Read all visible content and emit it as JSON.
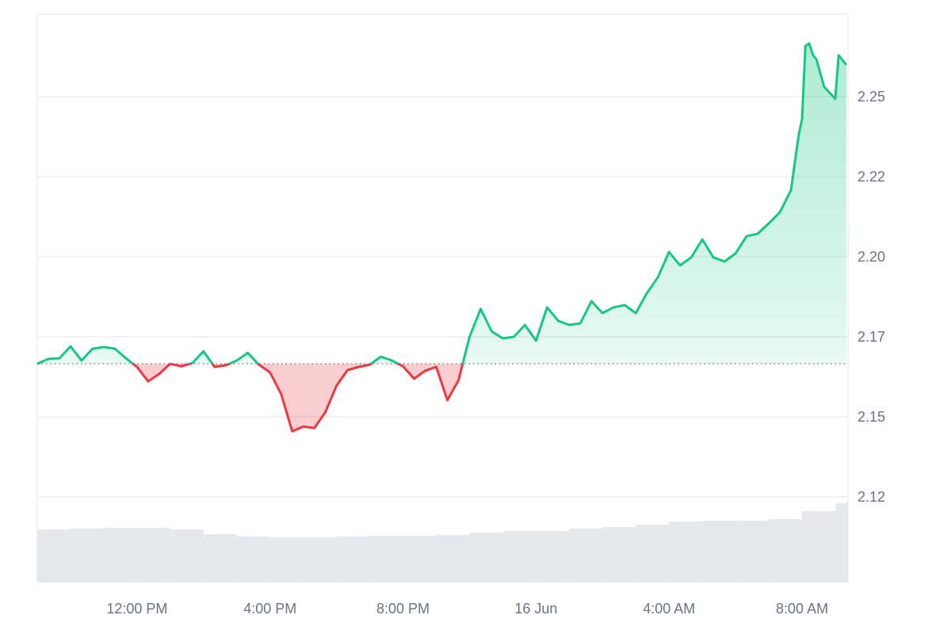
{
  "chart_data": {
    "type": "line",
    "title": "",
    "xlabel": "",
    "ylabel": "",
    "baseline": 2.1666,
    "ylim": [
      2.0983,
      2.2757
    ],
    "grid": true,
    "legend": "none",
    "colors": {
      "up": "#16c784",
      "down": "#ea3943",
      "up_fill": "#16c784",
      "down_fill": "#ea3943",
      "volume": "#e5e8ec",
      "grid": "#eeeeee",
      "baseline": "#777777",
      "tick_text": "#6b7280"
    },
    "y_ticks": [
      {
        "value": 2.25,
        "label": "2.25"
      },
      {
        "value": 2.225,
        "label": "2.22"
      },
      {
        "value": 2.2,
        "label": "2.20"
      },
      {
        "value": 2.175,
        "label": "2.17"
      },
      {
        "value": 2.15,
        "label": "2.15"
      },
      {
        "value": 2.125,
        "label": "2.12"
      }
    ],
    "x_ticks": [
      {
        "time": "15 Jun 12:00",
        "label": "12:00 PM"
      },
      {
        "time": "15 Jun 16:00",
        "label": "4:00 PM"
      },
      {
        "time": "15 Jun 20:00",
        "label": "8:00 PM"
      },
      {
        "time": "16 Jun 00:00",
        "label": "16 Jun"
      },
      {
        "time": "16 Jun 04:00",
        "label": "4:00 AM"
      },
      {
        "time": "16 Jun 08:00",
        "label": "8:00 AM"
      }
    ],
    "x_range": [
      "15 Jun 09:00",
      "16 Jun 09:20"
    ],
    "series": [
      {
        "x": [
          "15 Jun 09:00",
          "15 Jun 09:20",
          "15 Jun 09:40",
          "15 Jun 10:00",
          "15 Jun 10:20",
          "15 Jun 10:40",
          "15 Jun 11:00",
          "15 Jun 11:20",
          "15 Jun 11:40",
          "15 Jun 12:00",
          "15 Jun 12:20",
          "15 Jun 12:40",
          "15 Jun 13:00",
          "15 Jun 13:20",
          "15 Jun 13:40",
          "15 Jun 14:00",
          "15 Jun 14:20",
          "15 Jun 14:40",
          "15 Jun 15:00",
          "15 Jun 15:20",
          "15 Jun 15:40",
          "15 Jun 16:00",
          "15 Jun 16:20",
          "15 Jun 16:40",
          "15 Jun 17:00",
          "15 Jun 17:20",
          "15 Jun 17:40",
          "15 Jun 18:00",
          "15 Jun 18:20",
          "15 Jun 18:40",
          "15 Jun 19:00",
          "15 Jun 19:20",
          "15 Jun 19:40",
          "15 Jun 20:00",
          "15 Jun 20:20",
          "15 Jun 20:40",
          "15 Jun 21:00",
          "15 Jun 21:20",
          "15 Jun 21:40",
          "15 Jun 22:00",
          "15 Jun 22:20",
          "15 Jun 22:40",
          "15 Jun 23:00",
          "15 Jun 23:20",
          "15 Jun 23:40",
          "16 Jun 00:00",
          "16 Jun 00:20",
          "16 Jun 00:40",
          "16 Jun 01:00",
          "16 Jun 01:20",
          "16 Jun 01:40",
          "16 Jun 02:00",
          "16 Jun 02:20",
          "16 Jun 02:40",
          "16 Jun 03:00",
          "16 Jun 03:20",
          "16 Jun 03:40",
          "16 Jun 04:00",
          "16 Jun 04:20",
          "16 Jun 04:40",
          "16 Jun 05:00",
          "16 Jun 05:20",
          "16 Jun 05:40",
          "16 Jun 06:00",
          "16 Jun 06:20",
          "16 Jun 06:40",
          "16 Jun 07:00",
          "16 Jun 07:20",
          "16 Jun 07:40",
          "16 Jun 07:54",
          "16 Jun 08:00",
          "16 Jun 08:06",
          "16 Jun 08:13",
          "16 Jun 08:20",
          "16 Jun 08:26",
          "16 Jun 08:40",
          "16 Jun 09:00",
          "16 Jun 09:06",
          "16 Jun 09:20"
        ],
        "values": [
          2.1666,
          2.1681,
          2.1683,
          2.172,
          2.1676,
          2.1713,
          2.1718,
          2.1713,
          2.1683,
          2.1656,
          2.1611,
          2.1634,
          2.1666,
          2.1658,
          2.1668,
          2.1705,
          2.1656,
          2.1661,
          2.1676,
          2.17,
          2.1663,
          2.1639,
          2.1572,
          2.1455,
          2.147,
          2.1465,
          2.1515,
          2.1597,
          2.1646,
          2.1656,
          2.1663,
          2.1688,
          2.1676,
          2.1658,
          2.1619,
          2.1644,
          2.1656,
          2.1552,
          2.1614,
          2.175,
          2.1837,
          2.1767,
          2.1745,
          2.175,
          2.1787,
          2.1738,
          2.1842,
          2.18,
          2.1787,
          2.1792,
          2.1861,
          2.1824,
          2.1842,
          2.1849,
          2.1824,
          2.1886,
          2.1936,
          2.2015,
          2.1973,
          2.1998,
          2.2054,
          2.1998,
          2.1985,
          2.201,
          2.2064,
          2.2072,
          2.2104,
          2.2139,
          2.2208,
          2.2381,
          2.2431,
          2.2658,
          2.2666,
          2.2629,
          2.2616,
          2.253,
          2.2493,
          2.2629,
          2.2599
        ]
      }
    ],
    "volume_relative": {
      "x": [
        "15 Jun 09:00",
        "15 Jun 10:00",
        "15 Jun 11:00",
        "15 Jun 12:00",
        "15 Jun 13:00",
        "15 Jun 14:00",
        "15 Jun 15:00",
        "15 Jun 16:00",
        "15 Jun 17:00",
        "15 Jun 18:00",
        "15 Jun 19:00",
        "15 Jun 20:00",
        "15 Jun 21:00",
        "15 Jun 22:00",
        "15 Jun 23:00",
        "16 Jun 00:00",
        "16 Jun 01:00",
        "16 Jun 02:00",
        "16 Jun 03:00",
        "16 Jun 04:00",
        "16 Jun 05:00",
        "16 Jun 06:00",
        "16 Jun 07:00",
        "16 Jun 08:00",
        "16 Jun 09:00",
        "16 Jun 09:20"
      ],
      "values": [
        67,
        68,
        69,
        69,
        67,
        61,
        58,
        57,
        57,
        58,
        59,
        59,
        60,
        63,
        65,
        65,
        68,
        70,
        73,
        77,
        78,
        78,
        80,
        90,
        100,
        102
      ]
    }
  }
}
